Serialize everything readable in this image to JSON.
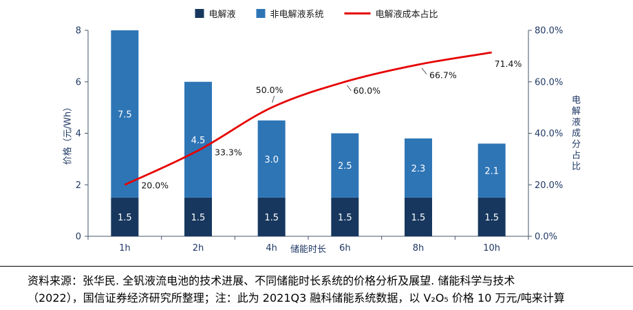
{
  "chart_data": {
    "type": "bar",
    "subtype": "stacked-bars-with-line-overlay",
    "categories": [
      "1h",
      "2h",
      "4h",
      "6h",
      "8h",
      "10h"
    ],
    "xlabel": "储能时长",
    "ylabel_left": "价格（元/Wh）",
    "ylabel_right": "电解液成分占比",
    "ylim_left": [
      0,
      8
    ],
    "yticks_left": [
      "0",
      "2",
      "4",
      "6",
      "8"
    ],
    "ylim_right": [
      0,
      80
    ],
    "yticks_right": [
      "0.0%",
      "20.0%",
      "40.0%",
      "60.0%",
      "80.0%"
    ],
    "grid": false,
    "legend_position": "top",
    "series": [
      {
        "name": "电解液",
        "type": "bar",
        "axis": "left",
        "color": "#17375E",
        "values": [
          1.5,
          1.5,
          1.5,
          1.5,
          1.5,
          1.5
        ],
        "value_labels": [
          "1.5",
          "1.5",
          "1.5",
          "1.5",
          "1.5",
          "1.5"
        ]
      },
      {
        "name": "非电解液系统",
        "type": "bar",
        "axis": "left",
        "color": "#2E75B6",
        "values": [
          7.5,
          4.5,
          3.0,
          2.5,
          2.3,
          2.1
        ],
        "value_labels": [
          "7.5",
          "4.5",
          "3.0",
          "2.5",
          "2.3",
          "2.1"
        ]
      },
      {
        "name": "电解液成本占比",
        "type": "line",
        "axis": "right",
        "color": "#E60000",
        "values": [
          20.0,
          33.3,
          50.0,
          60.0,
          66.7,
          71.4
        ],
        "value_labels": [
          "20.0%",
          "33.3%",
          "50.0%",
          "60.0%",
          "66.7%",
          "71.4%"
        ]
      }
    ]
  },
  "source_note": {
    "line1": "资料来源：张华民. 全钒液流电池的技术进展、不同储能时长系统的价格分析及展望. 储能科学与技术",
    "line2": "（2022），国信证券经济研究所整理；注：此为 2021Q3 融科储能系统数据，以 V₂O₅ 价格 10 万元/吨来计算"
  }
}
